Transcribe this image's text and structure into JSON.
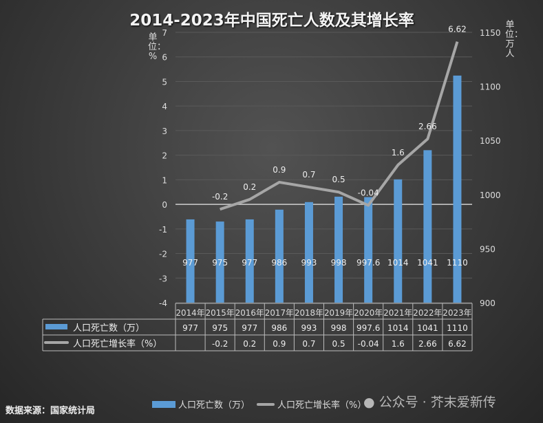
{
  "chart_data": {
    "type": "bar+line",
    "title": "2014-2023年中国死亡人数及其增长率",
    "categories": [
      "2014年",
      "2015年",
      "2016年",
      "2017年",
      "2018年",
      "2019年",
      "2020年",
      "2021年",
      "2022年",
      "2023年"
    ],
    "series": [
      {
        "name": "人口死亡数（万）",
        "type": "bar",
        "axis": "right",
        "color": "#5b9bd5",
        "values": [
          977,
          975,
          977,
          986,
          993,
          998,
          997.6,
          1014,
          1041,
          1110
        ],
        "labels": [
          "977",
          "975",
          "977",
          "986",
          "993",
          "998",
          "997.6",
          "1014",
          "1041",
          "1110"
        ]
      },
      {
        "name": "人口死亡增长率（%）",
        "type": "line",
        "axis": "left",
        "color": "#a6a6a6",
        "values": [
          null,
          -0.2,
          0.2,
          0.9,
          0.7,
          0.5,
          -0.04,
          1.6,
          2.66,
          6.62
        ],
        "labels": [
          "",
          "-0.2",
          "0.2",
          "0.9",
          "0.7",
          "0.5",
          "-0.04",
          "1.6",
          "2.66",
          "6.62"
        ]
      }
    ],
    "left_axis": {
      "label": "单位：%",
      "ylim": [
        -4,
        7
      ],
      "ticks": [
        "-4",
        "-3",
        "-2",
        "-1",
        "0",
        "1",
        "2",
        "3",
        "4",
        "5",
        "6",
        "7"
      ]
    },
    "right_axis": {
      "label": "单位：万人",
      "ylim": [
        900,
        1150
      ],
      "ticks": [
        "900",
        "950",
        "1000",
        "1050",
        "1100",
        "1150"
      ]
    },
    "grid": true,
    "legend_position": "bottom"
  },
  "source": "数据来源：国家统计局",
  "watermark": "公众号 · 芥末爱新传"
}
